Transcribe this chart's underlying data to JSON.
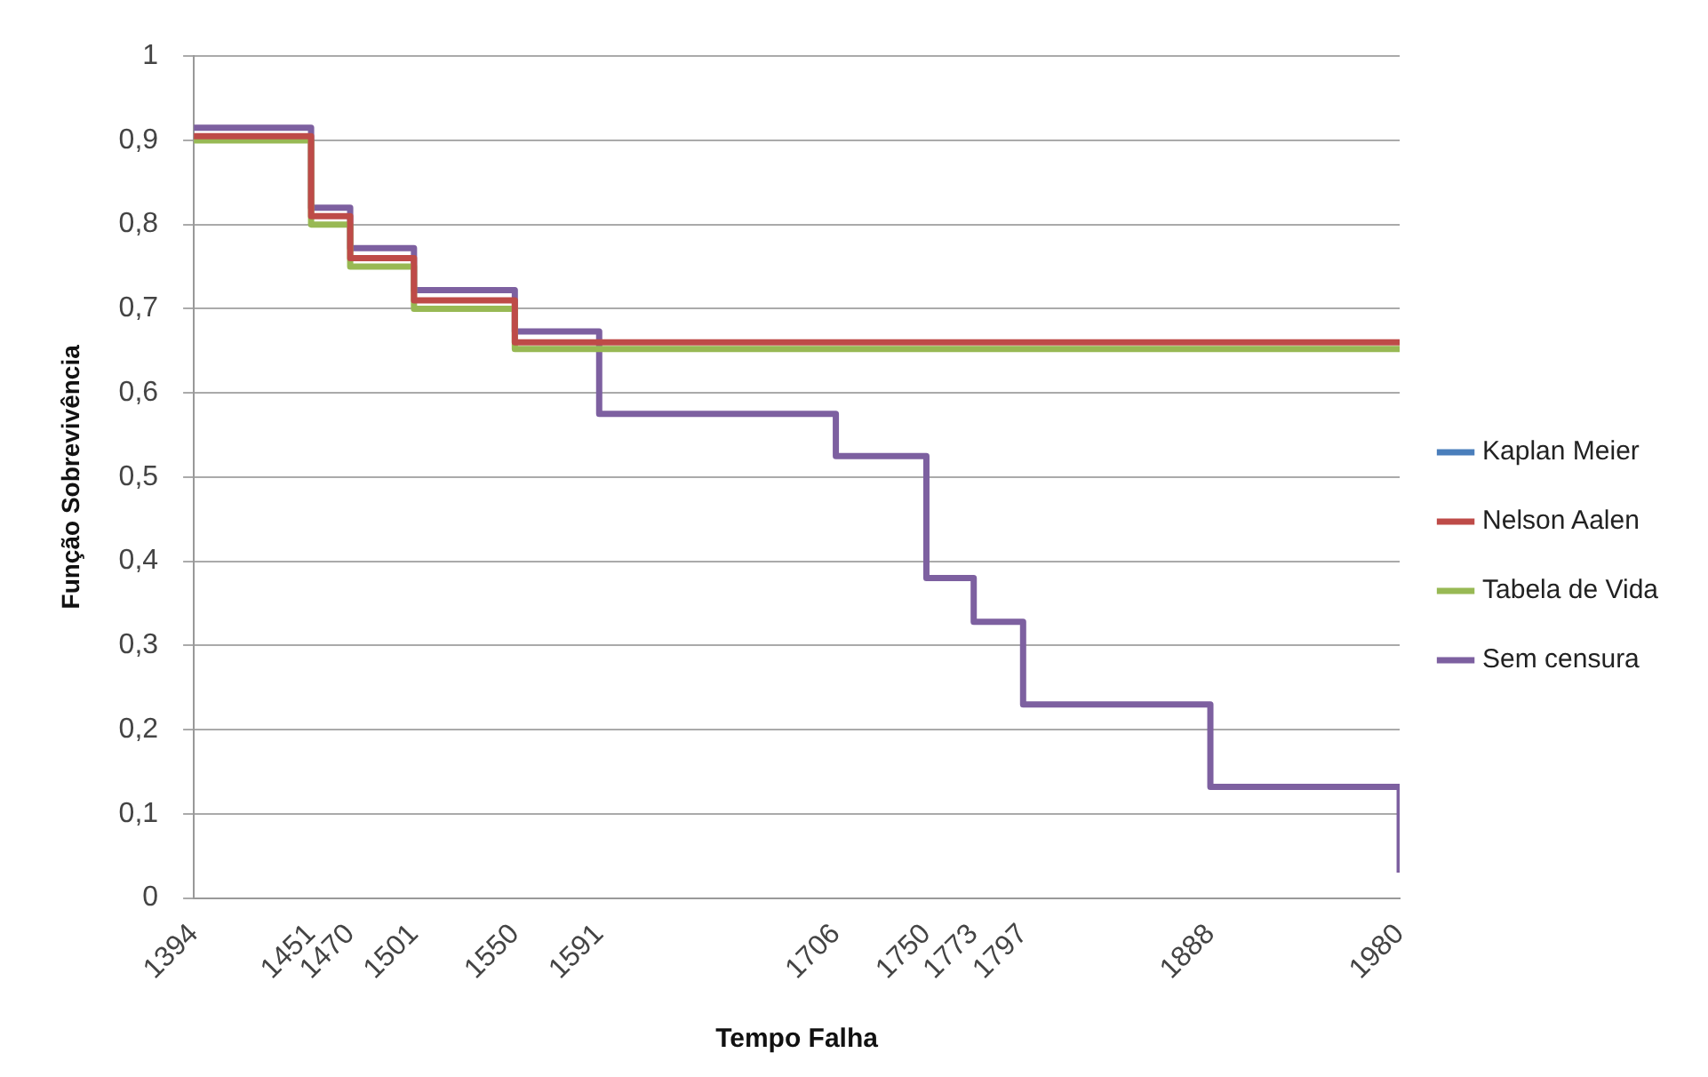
{
  "chart_data": {
    "type": "step",
    "xlabel": "Tempo Falha",
    "ylabel": "Função Sobrevivência",
    "xlim": [
      1394,
      1980
    ],
    "xticks": [
      1394,
      1451,
      1470,
      1501,
      1550,
      1591,
      1706,
      1750,
      1773,
      1797,
      1888,
      1980
    ],
    "ylim": [
      0,
      1
    ],
    "yticks": [
      0,
      {
        "value": 0.1,
        "label": "0,1"
      },
      {
        "value": 0.2,
        "label": "0,2"
      },
      {
        "value": 0.3,
        "label": "0,3"
      },
      {
        "value": 0.4,
        "label": "0,4"
      },
      {
        "value": 0.5,
        "label": "0,5"
      },
      {
        "value": 0.6,
        "label": "0,6"
      },
      {
        "value": 0.7,
        "label": "0,7"
      },
      {
        "value": 0.8,
        "label": "0,8"
      },
      {
        "value": 0.9,
        "label": "0,9"
      },
      1
    ],
    "grid": "y",
    "legend": "right",
    "marker": "none",
    "line_style": "solid",
    "series": [
      {
        "name": "Kaplan Meier",
        "color": "#4a7ebb"
      },
      {
        "name": "Nelson Aalen",
        "color": "#be4b48",
        "x": [
          1394,
          1451,
          1470,
          1501,
          1550,
          1980
        ],
        "values": [
          0.905,
          0.81,
          0.76,
          0.71,
          0.66,
          0.66
        ]
      },
      {
        "name": "Tabela de Vida",
        "color": "#98b954",
        "x": [
          1394,
          1451,
          1470,
          1501,
          1550,
          1980
        ],
        "values": [
          0.9,
          0.8,
          0.75,
          0.7,
          0.652,
          0.652
        ]
      },
      {
        "name": "Sem censura",
        "color": "#7d60a0",
        "x": [
          1394,
          1451,
          1470,
          1501,
          1550,
          1591,
          1706,
          1750,
          1773,
          1797,
          1888,
          1980
        ],
        "values": [
          0.915,
          0.82,
          0.772,
          0.722,
          0.673,
          0.575,
          0.525,
          0.38,
          0.328,
          0.23,
          0.132,
          0.03
        ]
      }
    ]
  }
}
